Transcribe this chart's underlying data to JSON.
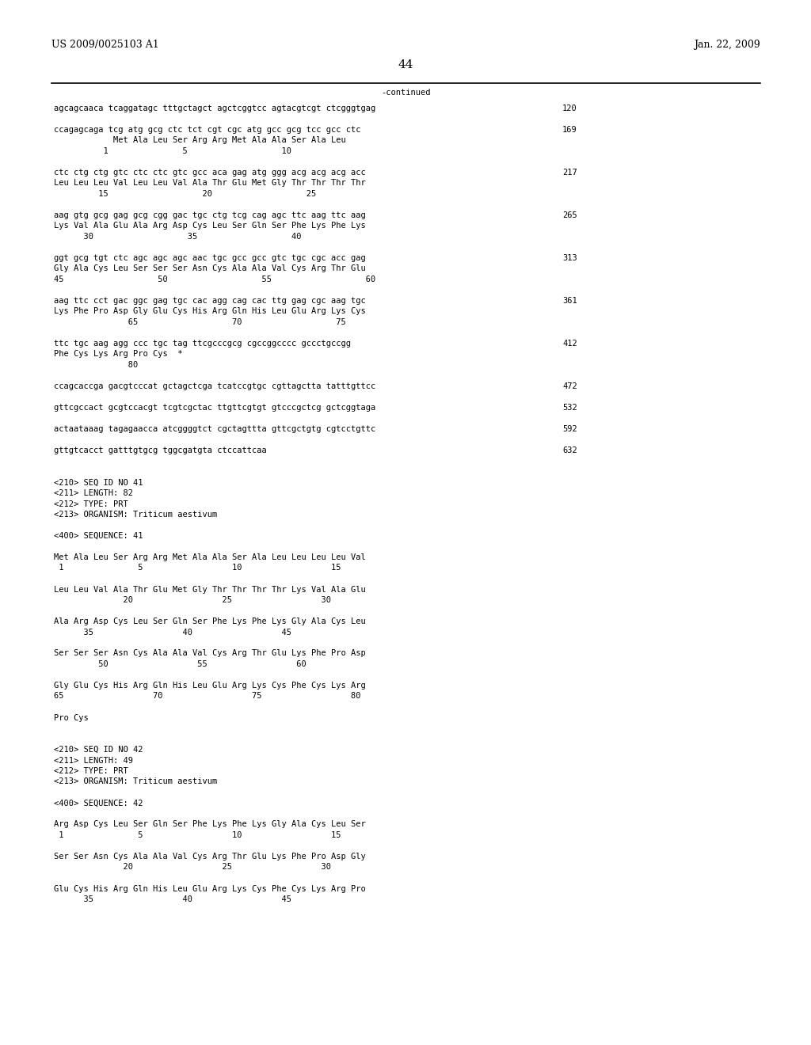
{
  "header_left": "US 2009/0025103 A1",
  "header_right": "Jan. 22, 2009",
  "page_number": "44",
  "continued_label": "-continued",
  "background_color": "#ffffff",
  "text_color": "#000000",
  "font_size_mono": 7.5,
  "font_size_header": 9.0,
  "font_size_page": 11.0,
  "content": [
    {
      "text": "agcagcaaca tcaggatagc tttgctagct agctcggtcc agtacgtcgt ctcgggtgag",
      "num": "120"
    },
    {
      "text": "",
      "num": ""
    },
    {
      "text": "ccagagcaga tcg atg gcg ctc tct cgt cgc atg gcc gcg tcc gcc ctc",
      "num": "169"
    },
    {
      "text": "            Met Ala Leu Ser Arg Arg Met Ala Ala Ser Ala Leu",
      "num": ""
    },
    {
      "text": "          1               5                   10",
      "num": ""
    },
    {
      "text": "",
      "num": ""
    },
    {
      "text": "ctc ctg ctg gtc ctc ctc gtc gcc aca gag atg ggg acg acg acg acc",
      "num": "217"
    },
    {
      "text": "Leu Leu Leu Val Leu Leu Val Ala Thr Glu Met Gly Thr Thr Thr Thr",
      "num": ""
    },
    {
      "text": "         15                   20                   25",
      "num": ""
    },
    {
      "text": "",
      "num": ""
    },
    {
      "text": "aag gtg gcg gag gcg cgg gac tgc ctg tcg cag agc ttc aag ttc aag",
      "num": "265"
    },
    {
      "text": "Lys Val Ala Glu Ala Arg Asp Cys Leu Ser Gln Ser Phe Lys Phe Lys",
      "num": ""
    },
    {
      "text": "      30                   35                   40",
      "num": ""
    },
    {
      "text": "",
      "num": ""
    },
    {
      "text": "ggt gcg tgt ctc agc agc agc aac tgc gcc gcc gtc tgc cgc acc gag",
      "num": "313"
    },
    {
      "text": "Gly Ala Cys Leu Ser Ser Ser Asn Cys Ala Ala Val Cys Arg Thr Glu",
      "num": ""
    },
    {
      "text": "45                   50                   55                   60",
      "num": ""
    },
    {
      "text": "",
      "num": ""
    },
    {
      "text": "aag ttc cct gac ggc gag tgc cac agg cag cac ttg gag cgc aag tgc",
      "num": "361"
    },
    {
      "text": "Lys Phe Pro Asp Gly Glu Cys His Arg Gln His Leu Glu Arg Lys Cys",
      "num": ""
    },
    {
      "text": "               65                   70                   75",
      "num": ""
    },
    {
      "text": "",
      "num": ""
    },
    {
      "text": "ttc tgc aag agg ccc tgc tag ttcgcccgcg cgccggcccc gccctgccgg",
      "num": "412"
    },
    {
      "text": "Phe Cys Lys Arg Pro Cys  *",
      "num": ""
    },
    {
      "text": "               80",
      "num": ""
    },
    {
      "text": "",
      "num": ""
    },
    {
      "text": "ccagcaccga gacgtcccat gctagctcga tcatccgtgc cgttagctta tatttgttcc",
      "num": "472"
    },
    {
      "text": "",
      "num": ""
    },
    {
      "text": "gttcgccact gcgtccacgt tcgtcgctac ttgttcgtgt gtcccgctcg gctcggtaga",
      "num": "532"
    },
    {
      "text": "",
      "num": ""
    },
    {
      "text": "actaataaag tagagaacca atcggggtct cgctagttta gttcgctgtg cgtcctgttc",
      "num": "592"
    },
    {
      "text": "",
      "num": ""
    },
    {
      "text": "gttgtcacct gatttgtgcg tggcgatgta ctccattcaa",
      "num": "632"
    },
    {
      "text": "",
      "num": ""
    },
    {
      "text": "",
      "num": ""
    },
    {
      "text": "<210> SEQ ID NO 41",
      "num": ""
    },
    {
      "text": "<211> LENGTH: 82",
      "num": ""
    },
    {
      "text": "<212> TYPE: PRT",
      "num": ""
    },
    {
      "text": "<213> ORGANISM: Triticum aestivum",
      "num": ""
    },
    {
      "text": "",
      "num": ""
    },
    {
      "text": "<400> SEQUENCE: 41",
      "num": ""
    },
    {
      "text": "",
      "num": ""
    },
    {
      "text": "Met Ala Leu Ser Arg Arg Met Ala Ala Ser Ala Leu Leu Leu Leu Val",
      "num": ""
    },
    {
      "text": " 1               5                  10                  15",
      "num": ""
    },
    {
      "text": "",
      "num": ""
    },
    {
      "text": "Leu Leu Val Ala Thr Glu Met Gly Thr Thr Thr Thr Lys Val Ala Glu",
      "num": ""
    },
    {
      "text": "              20                  25                  30",
      "num": ""
    },
    {
      "text": "",
      "num": ""
    },
    {
      "text": "Ala Arg Asp Cys Leu Ser Gln Ser Phe Lys Phe Lys Gly Ala Cys Leu",
      "num": ""
    },
    {
      "text": "      35                  40                  45",
      "num": ""
    },
    {
      "text": "",
      "num": ""
    },
    {
      "text": "Ser Ser Ser Asn Cys Ala Ala Val Cys Arg Thr Glu Lys Phe Pro Asp",
      "num": ""
    },
    {
      "text": "         50                  55                  60",
      "num": ""
    },
    {
      "text": "",
      "num": ""
    },
    {
      "text": "Gly Glu Cys His Arg Gln His Leu Glu Arg Lys Cys Phe Cys Lys Arg",
      "num": ""
    },
    {
      "text": "65                  70                  75                  80",
      "num": ""
    },
    {
      "text": "",
      "num": ""
    },
    {
      "text": "Pro Cys",
      "num": ""
    },
    {
      "text": "",
      "num": ""
    },
    {
      "text": "",
      "num": ""
    },
    {
      "text": "<210> SEQ ID NO 42",
      "num": ""
    },
    {
      "text": "<211> LENGTH: 49",
      "num": ""
    },
    {
      "text": "<212> TYPE: PRT",
      "num": ""
    },
    {
      "text": "<213> ORGANISM: Triticum aestivum",
      "num": ""
    },
    {
      "text": "",
      "num": ""
    },
    {
      "text": "<400> SEQUENCE: 42",
      "num": ""
    },
    {
      "text": "",
      "num": ""
    },
    {
      "text": "Arg Asp Cys Leu Ser Gln Ser Phe Lys Phe Lys Gly Ala Cys Leu Ser",
      "num": ""
    },
    {
      "text": " 1               5                  10                  15",
      "num": ""
    },
    {
      "text": "",
      "num": ""
    },
    {
      "text": "Ser Ser Asn Cys Ala Ala Val Cys Arg Thr Glu Lys Phe Pro Asp Gly",
      "num": ""
    },
    {
      "text": "              20                  25                  30",
      "num": ""
    },
    {
      "text": "",
      "num": ""
    },
    {
      "text": "Glu Cys His Arg Gln His Leu Glu Arg Lys Cys Phe Cys Lys Arg Pro",
      "num": ""
    },
    {
      "text": "      35                  40                  45",
      "num": ""
    }
  ]
}
